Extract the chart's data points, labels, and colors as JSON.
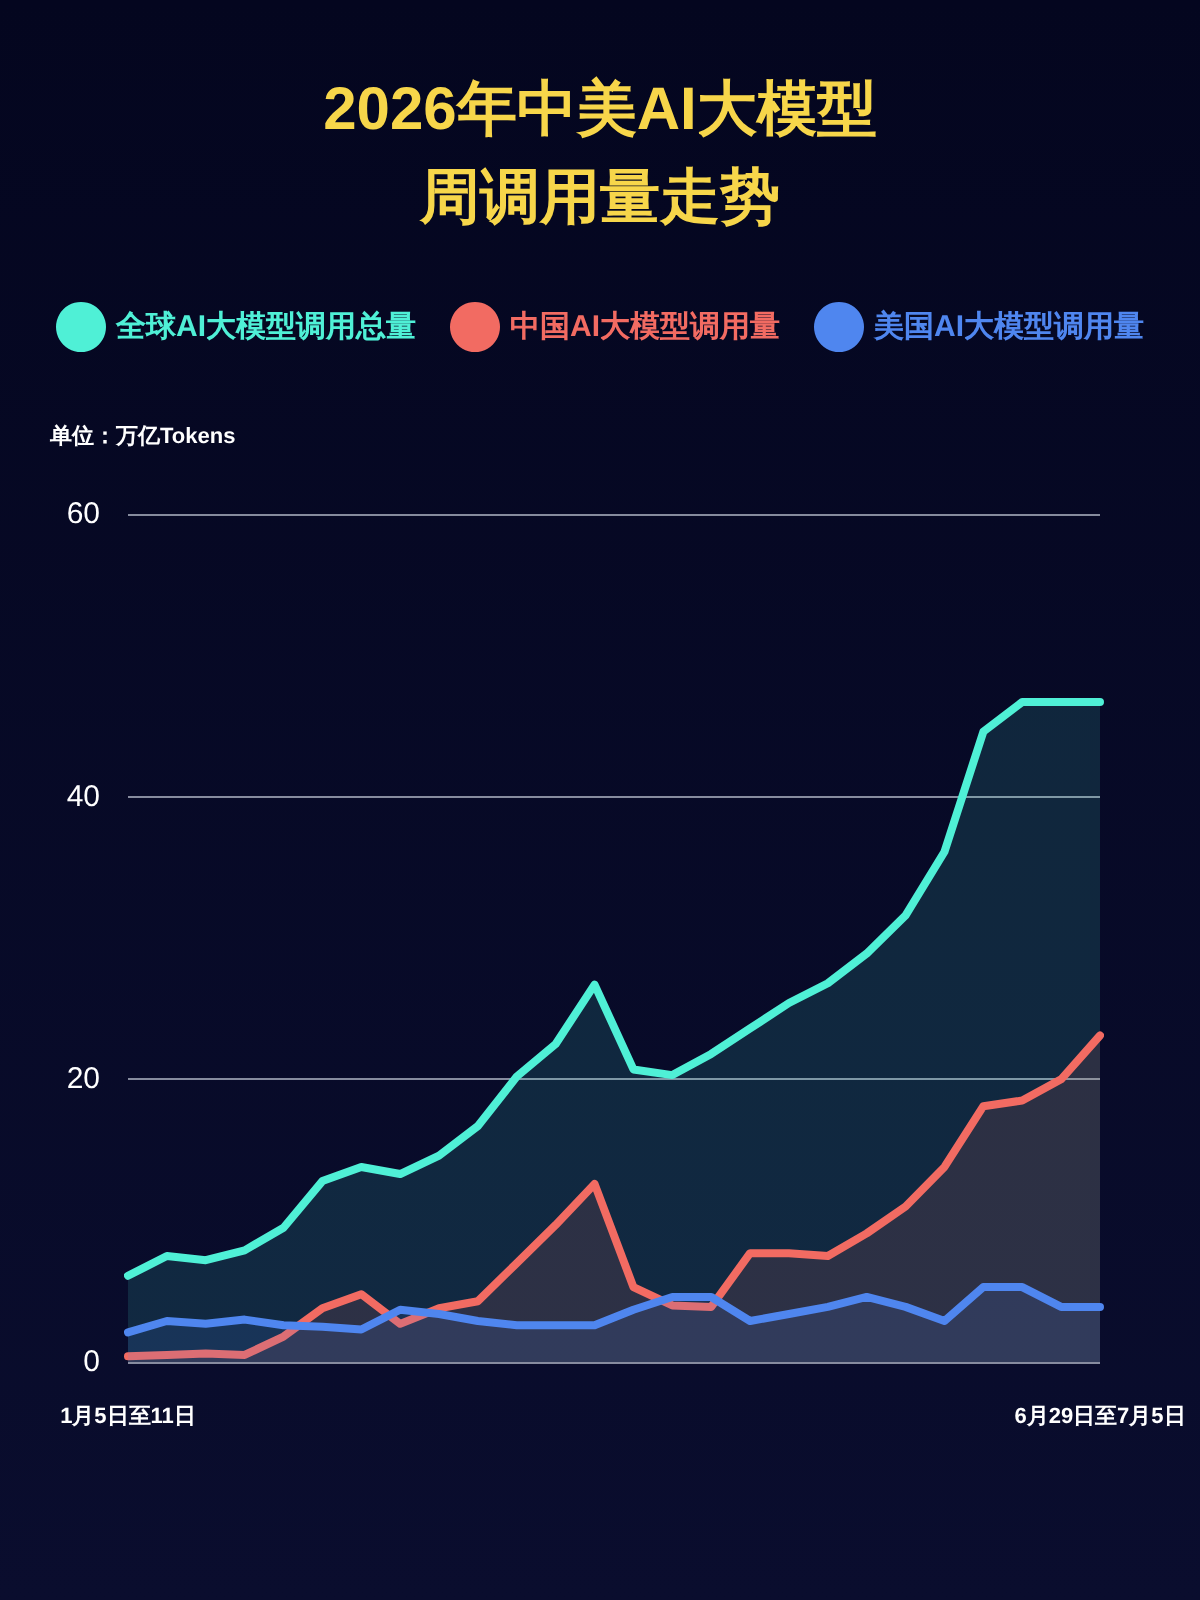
{
  "chart_data": {
    "type": "area",
    "title": "2026年中美AI大模型周调用量走势",
    "ylabel": "单位：万亿Tokens",
    "categories": [
      "1月5日至11日",
      null,
      null,
      null,
      null,
      null,
      null,
      null,
      null,
      null,
      null,
      null,
      null,
      null,
      null,
      null,
      null,
      null,
      null,
      null,
      null,
      null,
      null,
      null,
      null,
      "6月29日至7月5日"
    ],
    "series": [
      {
        "name": "全球AI大模型调用总量",
        "color": "#4ff0d6",
        "values": [
          6.1,
          7.5,
          7.2,
          7.9,
          9.5,
          12.8,
          13.8,
          13.3,
          14.6,
          16.7,
          20.2,
          22.5,
          26.7,
          20.7,
          20.3,
          21.8,
          23.6,
          25.4,
          26.8,
          28.9,
          31.6,
          36.1,
          44.6,
          46.7,
          46.7,
          46.7
        ]
      },
      {
        "name": "中国AI大模型调用量",
        "color": "#f26b62",
        "values": [
          0.4,
          0.5,
          0.6,
          0.5,
          1.8,
          3.8,
          4.8,
          2.7,
          3.8,
          4.3,
          7.0,
          9.7,
          12.6,
          5.3,
          4.0,
          3.9,
          7.7,
          7.7,
          7.5,
          9.1,
          11.0,
          13.8,
          18.1,
          18.5,
          20.0,
          23.1
        ]
      },
      {
        "name": "美国AI大模型调用量",
        "color": "#4f86ef",
        "values": [
          2.1,
          2.9,
          2.7,
          3.0,
          2.6,
          2.5,
          2.3,
          3.7,
          3.4,
          2.9,
          2.6,
          2.6,
          2.6,
          3.7,
          4.6,
          4.6,
          2.9,
          3.4,
          3.9,
          4.6,
          3.9,
          2.9,
          5.3,
          5.3,
          3.9,
          3.9
        ]
      }
    ],
    "ylim": [
      0,
      60
    ],
    "yticks": [
      0,
      20,
      40,
      60
    ],
    "grid": "y",
    "legend": "top",
    "marker": "none",
    "line_style": "solid"
  }
}
